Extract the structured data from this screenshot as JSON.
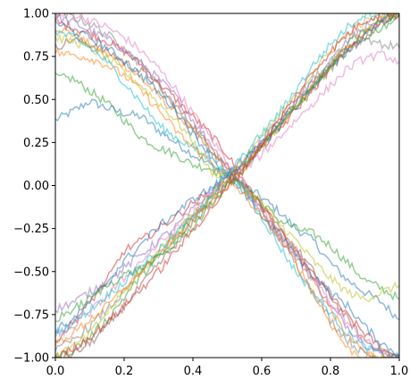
{
  "chart_data": {
    "type": "line",
    "title": "",
    "xlabel": "",
    "ylabel": "",
    "xlim": [
      0,
      1
    ],
    "ylim": [
      -1,
      1
    ],
    "grid": false,
    "legend": "none",
    "x_ticks": [
      "0.0",
      "0.2",
      "0.4",
      "0.6",
      "0.8",
      "1.0"
    ],
    "y_ticks": [
      "1.00",
      "0.75",
      "0.50",
      "0.25",
      "0.00",
      "−0.25",
      "−0.50",
      "−0.75",
      "−1.00"
    ],
    "x_tick_values": [
      0,
      0.2,
      0.4,
      0.6,
      0.8,
      1.0
    ],
    "y_tick_values": [
      1.0,
      0.75,
      0.5,
      0.25,
      0.0,
      -0.25,
      -0.5,
      -0.75,
      -1.0
    ],
    "x": [
      0.0,
      0.05,
      0.1,
      0.15,
      0.2,
      0.25,
      0.3,
      0.35,
      0.4,
      0.45,
      0.5,
      0.55,
      0.6,
      0.65,
      0.7,
      0.75,
      0.8,
      0.85,
      0.9,
      0.95,
      1.0
    ],
    "line_opacity": 0.5,
    "series": [
      {
        "color": "#1f77b4",
        "values": [
          0.38,
          0.43,
          0.49,
          0.45,
          0.42,
          0.4,
          0.32,
          0.25,
          0.18,
          0.12,
          0.06,
          0.0,
          -0.07,
          -0.15,
          -0.25,
          -0.32,
          -0.45,
          -0.55,
          -0.62,
          -0.68,
          -0.78
        ]
      },
      {
        "color": "#ff7f0e",
        "values": [
          0.92,
          0.88,
          0.82,
          0.76,
          0.7,
          0.62,
          0.52,
          0.42,
          0.32,
          0.22,
          0.1,
          0.0,
          -0.12,
          -0.24,
          -0.38,
          -0.55,
          -0.72,
          -0.88,
          -0.97,
          -1.0,
          -1.0
        ]
      },
      {
        "color": "#2ca02c",
        "values": [
          0.63,
          0.62,
          0.55,
          0.48,
          0.38,
          0.28,
          0.22,
          0.18,
          0.12,
          0.1,
          0.05,
          0.0,
          -0.1,
          -0.2,
          -0.25,
          -0.28,
          -0.35,
          -0.45,
          -0.55,
          -0.6,
          -0.66
        ]
      },
      {
        "color": "#d62728",
        "values": [
          0.95,
          0.92,
          0.88,
          0.84,
          0.78,
          0.7,
          0.6,
          0.5,
          0.4,
          0.3,
          0.18,
          0.02,
          -0.12,
          -0.26,
          -0.4,
          -0.52,
          -0.64,
          -0.76,
          -0.86,
          -0.95,
          -1.0
        ]
      },
      {
        "color": "#9467bd",
        "values": [
          0.98,
          0.95,
          0.9,
          0.85,
          0.79,
          0.71,
          0.62,
          0.52,
          0.38,
          0.25,
          0.1,
          -0.02,
          -0.15,
          -0.3,
          -0.42,
          -0.55,
          -0.7,
          -0.82,
          -0.92,
          -0.98,
          -1.0
        ]
      },
      {
        "color": "#8c564b",
        "values": [
          0.8,
          0.85,
          0.82,
          0.78,
          0.72,
          0.66,
          0.58,
          0.46,
          0.35,
          0.22,
          0.12,
          0.0,
          -0.12,
          -0.25,
          -0.36,
          -0.5,
          -0.64,
          -0.78,
          -0.9,
          -0.96,
          -1.0
        ]
      },
      {
        "color": "#e377c2",
        "values": [
          0.98,
          1.0,
          0.96,
          0.92,
          0.86,
          0.78,
          0.68,
          0.56,
          0.42,
          0.28,
          0.14,
          0.0,
          -0.14,
          -0.28,
          -0.4,
          -0.54,
          -0.68,
          -0.8,
          -0.9,
          -0.97,
          -1.0
        ]
      },
      {
        "color": "#7f7f7f",
        "values": [
          1.0,
          0.98,
          0.94,
          0.88,
          0.8,
          0.7,
          0.58,
          0.45,
          0.32,
          0.2,
          0.08,
          -0.02,
          -0.14,
          -0.3,
          -0.46,
          -0.62,
          -0.78,
          -0.9,
          -0.98,
          -1.0,
          -1.0
        ]
      },
      {
        "color": "#bcbd22",
        "values": [
          0.86,
          0.84,
          0.8,
          0.74,
          0.66,
          0.58,
          0.48,
          0.38,
          0.26,
          0.08,
          0.05,
          -0.02,
          -0.1,
          -0.22,
          -0.32,
          -0.44,
          -0.54,
          -0.62,
          -0.66,
          -0.62,
          -0.58
        ]
      },
      {
        "color": "#17becf",
        "values": [
          0.9,
          0.86,
          0.8,
          0.72,
          0.6,
          0.48,
          0.35,
          0.28,
          0.22,
          0.15,
          0.06,
          -0.02,
          -0.18,
          -0.35,
          -0.5,
          -0.62,
          -0.74,
          -0.86,
          -0.94,
          -0.98,
          -1.0
        ]
      },
      {
        "color": "#1f77b4",
        "values": [
          0.95,
          0.9,
          0.86,
          0.8,
          0.72,
          0.64,
          0.54,
          0.44,
          0.3,
          0.18,
          0.05,
          -0.06,
          -0.18,
          -0.28,
          -0.4,
          -0.52,
          -0.62,
          -0.7,
          -0.82,
          -0.92,
          -0.98
        ]
      },
      {
        "color": "#ff7f0e",
        "values": [
          0.77,
          0.76,
          0.74,
          0.7,
          0.64,
          0.55,
          0.44,
          0.32,
          0.22,
          0.14,
          0.04,
          -0.06,
          -0.18,
          -0.3,
          -0.45,
          -0.62,
          -0.8,
          -0.95,
          -1.0,
          -1.0,
          -1.0
        ]
      },
      {
        "color": "#2ca02c",
        "values": [
          -1.0,
          -0.96,
          -0.88,
          -0.78,
          -0.65,
          -0.52,
          -0.42,
          -0.32,
          -0.18,
          -0.08,
          0.02,
          0.12,
          0.24,
          0.34,
          0.46,
          0.58,
          0.68,
          0.78,
          0.86,
          0.92,
          0.98
        ]
      },
      {
        "color": "#d62728",
        "values": [
          -0.9,
          -0.8,
          -0.68,
          -0.55,
          -0.38,
          -0.32,
          -0.25,
          -0.18,
          -0.1,
          -0.04,
          0.04,
          0.12,
          0.22,
          0.32,
          0.44,
          0.56,
          0.68,
          0.8,
          0.88,
          0.95,
          1.0
        ]
      },
      {
        "color": "#9467bd",
        "values": [
          -0.72,
          -0.68,
          -0.62,
          -0.56,
          -0.48,
          -0.4,
          -0.32,
          -0.24,
          -0.14,
          -0.04,
          0.06,
          0.16,
          0.26,
          0.36,
          0.48,
          0.6,
          0.72,
          0.84,
          0.92,
          0.97,
          1.0
        ]
      },
      {
        "color": "#8c564b",
        "values": [
          -1.0,
          -0.98,
          -0.92,
          -0.82,
          -0.7,
          -0.58,
          -0.46,
          -0.34,
          -0.22,
          -0.1,
          0.02,
          0.12,
          0.24,
          0.36,
          0.48,
          0.58,
          0.68,
          0.78,
          0.86,
          0.94,
          0.99
        ]
      },
      {
        "color": "#e377c2",
        "values": [
          -0.88,
          -0.82,
          -0.74,
          -0.64,
          -0.54,
          -0.44,
          -0.34,
          -0.26,
          -0.16,
          -0.06,
          0.02,
          0.1,
          0.18,
          0.28,
          0.38,
          0.48,
          0.58,
          0.68,
          0.74,
          0.76,
          0.72
        ]
      },
      {
        "color": "#7f7f7f",
        "values": [
          -0.96,
          -0.9,
          -0.82,
          -0.72,
          -0.62,
          -0.5,
          -0.4,
          -0.3,
          -0.18,
          -0.08,
          0.04,
          0.14,
          0.26,
          0.38,
          0.5,
          0.62,
          0.72,
          0.8,
          0.86,
          0.82,
          0.8
        ]
      },
      {
        "color": "#bcbd22",
        "values": [
          -0.98,
          -0.94,
          -0.86,
          -0.74,
          -0.62,
          -0.5,
          -0.38,
          -0.28,
          -0.16,
          -0.06,
          0.04,
          0.16,
          0.28,
          0.4,
          0.52,
          0.66,
          0.78,
          0.88,
          0.95,
          1.0,
          1.0
        ]
      },
      {
        "color": "#17becf",
        "values": [
          -0.86,
          -0.8,
          -0.72,
          -0.64,
          -0.56,
          -0.46,
          -0.38,
          -0.28,
          -0.18,
          -0.06,
          0.06,
          0.18,
          0.3,
          0.42,
          0.56,
          0.7,
          0.82,
          0.92,
          1.0,
          1.0,
          1.0
        ]
      },
      {
        "color": "#1f77b4",
        "values": [
          -0.84,
          -0.78,
          -0.68,
          -0.56,
          -0.44,
          -0.34,
          -0.24,
          -0.16,
          -0.08,
          -0.02,
          0.06,
          0.14,
          0.24,
          0.34,
          0.46,
          0.58,
          0.68,
          0.78,
          0.88,
          0.96,
          1.0
        ]
      },
      {
        "color": "#ff7f0e",
        "values": [
          -0.92,
          -0.86,
          -0.78,
          -0.7,
          -0.6,
          -0.5,
          -0.4,
          -0.3,
          -0.2,
          -0.1,
          0.0,
          0.1,
          0.22,
          0.34,
          0.46,
          0.58,
          0.7,
          0.8,
          0.9,
          0.96,
          1.0
        ]
      },
      {
        "color": "#2ca02c",
        "values": [
          -0.78,
          -0.72,
          -0.66,
          -0.58,
          -0.52,
          -0.48,
          -0.42,
          -0.34,
          -0.24,
          -0.12,
          0.0,
          0.1,
          0.22,
          0.34,
          0.46,
          0.58,
          0.7,
          0.82,
          0.9,
          0.96,
          1.0
        ]
      },
      {
        "color": "#d62728",
        "values": [
          -1.0,
          -0.95,
          -0.88,
          -0.8,
          -0.7,
          -0.6,
          -0.5,
          -0.38,
          -0.26,
          -0.14,
          -0.02,
          0.1,
          0.24,
          0.38,
          0.52,
          0.66,
          0.78,
          0.88,
          0.96,
          1.0,
          1.0
        ]
      }
    ]
  }
}
